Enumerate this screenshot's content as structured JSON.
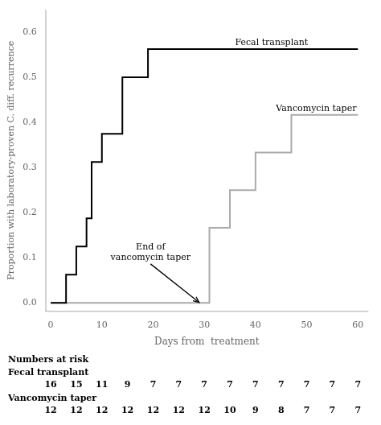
{
  "chart_data": {
    "type": "line",
    "line_style": "step",
    "xlabel": "Days from  treatment",
    "ylabel": "Proportion with laboratory-proven C. diff. recurrence",
    "xlim": [
      -1,
      62
    ],
    "ylim": [
      -0.018,
      0.65
    ],
    "xticks": [
      0,
      10,
      20,
      30,
      40,
      50,
      60
    ],
    "yticks": [
      {
        "value": 0.0,
        "label": "0.0"
      },
      0.1,
      0.2,
      0.3,
      0.4,
      0.5,
      0.6
    ],
    "grid": false,
    "series": [
      {
        "name": "Fecal transplant",
        "color": "#000000",
        "x": [
          0,
          3,
          5,
          7,
          8,
          10,
          14,
          19,
          60
        ],
        "values": [
          0,
          0.0625,
          0.125,
          0.1875,
          0.3125,
          0.375,
          0.5,
          0.5625,
          0.5625
        ]
      },
      {
        "name": "Vancomycin taper",
        "color": "#aaaaaa",
        "x": [
          0,
          28,
          31,
          35,
          40,
          47,
          60
        ],
        "values": [
          0,
          0,
          0.1667,
          0.25,
          0.3333,
          0.4167,
          0.4167
        ]
      }
    ],
    "annotations": [
      {
        "text": "Fecal transplant",
        "x": 36,
        "y": 0.572
      },
      {
        "text": "Vancomycin taper",
        "x": 44,
        "y": 0.425
      },
      {
        "text": "End of\nvancomycin taper",
        "x": 19.5,
        "y": 0.09,
        "arrow_to": [
          29.0,
          0.001
        ]
      }
    ],
    "risk_table": {
      "title": "Numbers at risk",
      "x": [
        0,
        5,
        10,
        15,
        20,
        25,
        30,
        35,
        40,
        45,
        50,
        55,
        60
      ],
      "rows": [
        {
          "name": "Fecal transplant",
          "values": [
            16,
            15,
            11,
            9,
            7,
            7,
            7,
            7,
            7,
            7,
            7,
            7,
            7
          ]
        },
        {
          "name": "Vancomycin taper",
          "values": [
            12,
            12,
            12,
            12,
            12,
            12,
            12,
            10,
            9,
            8,
            7,
            7,
            7
          ]
        }
      ]
    }
  }
}
